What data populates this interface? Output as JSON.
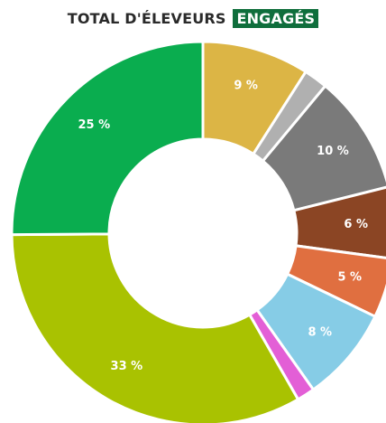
{
  "title": {
    "main": "TOTAL D'ÉLEVEURS",
    "highlight": "ENGAGÉS",
    "highlight_color": "#0f6e3c"
  },
  "chart_data": {
    "type": "pie",
    "donut": true,
    "legend": "none",
    "slices": [
      {
        "value": 9,
        "label": "9 %",
        "color": "#dcb545"
      },
      {
        "value": 2,
        "label": "",
        "color": "#b0b0b0"
      },
      {
        "value": 10,
        "label": "10 %",
        "color": "#7a7a7a"
      },
      {
        "value": 6,
        "label": "6 %",
        "color": "#8b4524"
      },
      {
        "value": 5,
        "label": "5 %",
        "color": "#e06f40"
      },
      {
        "value": 8,
        "label": "8 %",
        "color": "#86cce6"
      },
      {
        "value": 1.5,
        "label": "",
        "color": "#e35fd6"
      },
      {
        "value": 33,
        "label": "33 %",
        "color": "#a9c201"
      },
      {
        "value": 25,
        "label": "25 %",
        "color": "#0aad4f"
      }
    ]
  }
}
